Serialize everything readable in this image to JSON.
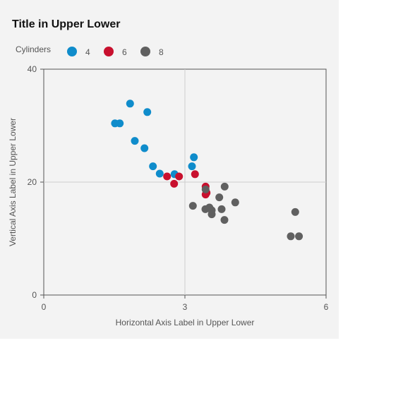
{
  "chart_data": {
    "type": "scatter",
    "title": "Title in Upper Lower",
    "xlabel": "Horizontal Axis Label in Upper Lower",
    "ylabel": "Vertical Axis Label in Upper Lower",
    "xlim": [
      0,
      6
    ],
    "ylim": [
      0,
      40
    ],
    "x_ticks": [
      "0",
      "3",
      "6"
    ],
    "y_ticks": [
      "0",
      "20",
      "40"
    ],
    "grid": "center lines",
    "legend": {
      "title": "Cylinders",
      "placement": "top-left",
      "entries": [
        "4",
        "6",
        "8"
      ]
    },
    "series": [
      {
        "name": "4",
        "color": "#0f8ccb",
        "points": [
          [
            2.32,
            22.8
          ],
          [
            3.19,
            24.4
          ],
          [
            3.15,
            22.8
          ],
          [
            2.2,
            32.4
          ],
          [
            1.615,
            30.4
          ],
          [
            1.835,
            33.9
          ],
          [
            2.465,
            21.5
          ],
          [
            1.935,
            27.3
          ],
          [
            2.14,
            26.0
          ],
          [
            1.513,
            30.4
          ],
          [
            2.78,
            21.4
          ]
        ]
      },
      {
        "name": "6",
        "color": "#c8102e",
        "points": [
          [
            2.62,
            21.0
          ],
          [
            2.875,
            21.0
          ],
          [
            3.215,
            21.4
          ],
          [
            3.46,
            18.1
          ],
          [
            3.44,
            19.2
          ],
          [
            3.44,
            17.8
          ],
          [
            2.77,
            19.7
          ]
        ]
      },
      {
        "name": "8",
        "color": "#606060",
        "points": [
          [
            3.44,
            18.7
          ],
          [
            3.57,
            14.3
          ],
          [
            4.07,
            16.4
          ],
          [
            3.73,
            17.3
          ],
          [
            3.78,
            15.2
          ],
          [
            5.25,
            10.4
          ],
          [
            5.424,
            10.4
          ],
          [
            5.345,
            14.7
          ],
          [
            3.52,
            15.5
          ],
          [
            3.435,
            15.2
          ],
          [
            3.84,
            13.3
          ],
          [
            3.845,
            19.2
          ],
          [
            3.17,
            15.8
          ],
          [
            3.57,
            15.0
          ]
        ]
      }
    ]
  }
}
